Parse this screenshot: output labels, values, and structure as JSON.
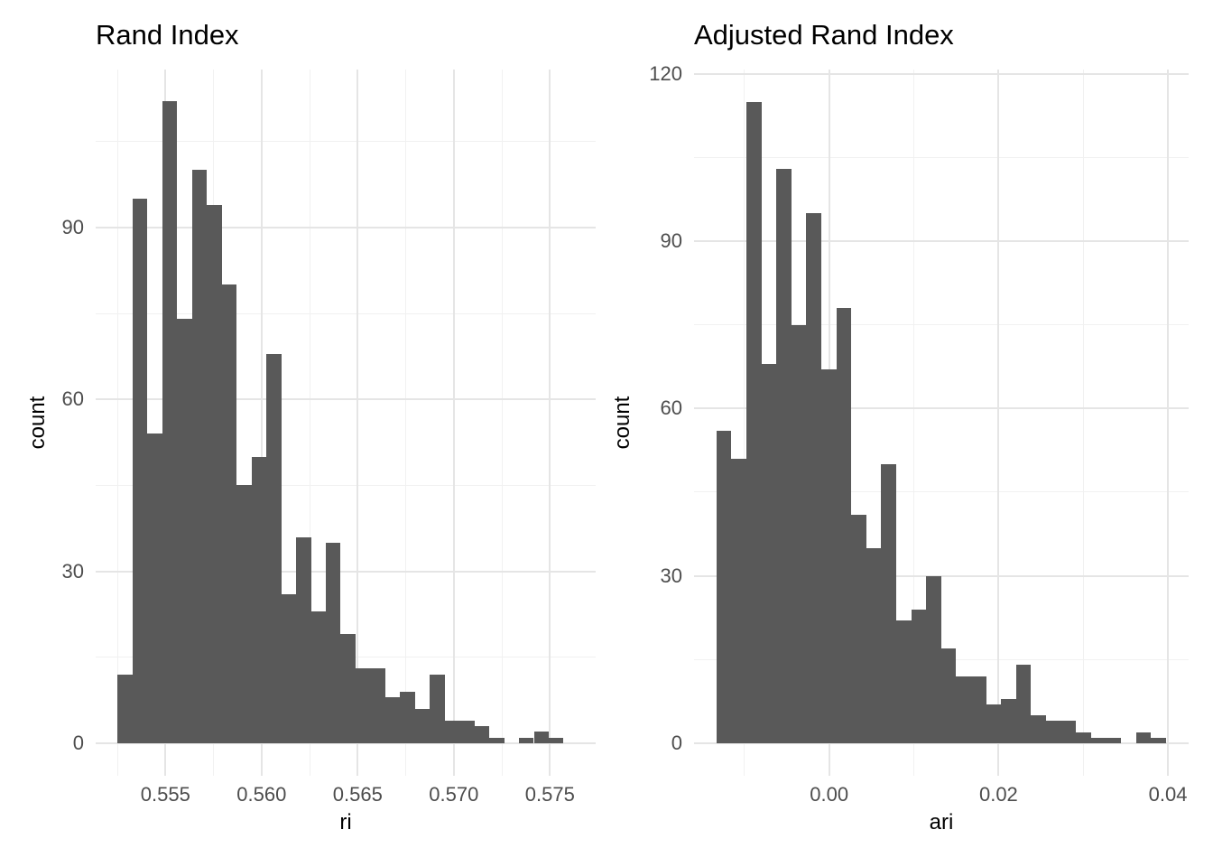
{
  "figure": {
    "background_color": "#FFFFFF",
    "bar_color": "#595959",
    "grid_major_color": "#E5E5E5",
    "grid_minor_color": "#F1F1F1",
    "tick_label_color": "#4D4D4D",
    "title_color": "#000000"
  },
  "chart_data": [
    {
      "type": "bar",
      "subtype": "histogram",
      "title": "Rand Index",
      "xlabel": "ri",
      "ylabel": "count",
      "bin_start": 0.55252,
      "bin_width": 0.000773,
      "counts": [
        12,
        95,
        54,
        112,
        74,
        100,
        94,
        80,
        45,
        50,
        68,
        26,
        36,
        23,
        35,
        19,
        13,
        13,
        8,
        9,
        6,
        12,
        4,
        4,
        3,
        1,
        0,
        1,
        2,
        1
      ],
      "total_count": 1000,
      "x_ticks": [
        0.555,
        0.56,
        0.565,
        0.57,
        0.575
      ],
      "x_tick_labels": [
        "0.555",
        "0.560",
        "0.565",
        "0.570",
        "0.575"
      ],
      "x_minor_ticks": [
        0.5525,
        0.5575,
        0.5625,
        0.5675,
        0.5725,
        0.5775
      ],
      "y_ticks": [
        0,
        30,
        60,
        90
      ],
      "y_tick_labels": [
        "0",
        "30",
        "60",
        "90"
      ],
      "y_minor_ticks": [
        15,
        45,
        75,
        105
      ],
      "xlim": [
        0.55137,
        0.57738
      ],
      "ylim": [
        -5.6,
        117.57
      ],
      "grid": true,
      "legend": false
    },
    {
      "type": "bar",
      "subtype": "histogram",
      "title": "Adjusted Rand Index",
      "xlabel": "ari",
      "ylabel": "count",
      "bin_start": -0.01331,
      "bin_width": 0.001769,
      "counts": [
        56,
        51,
        115,
        68,
        103,
        75,
        95,
        67,
        78,
        41,
        35,
        50,
        22,
        24,
        30,
        17,
        12,
        12,
        7,
        8,
        14,
        5,
        4,
        4,
        2,
        1,
        1,
        0,
        2,
        1
      ],
      "total_count": 1000,
      "x_ticks": [
        0.0,
        0.02,
        0.04
      ],
      "x_tick_labels": [
        "0.00",
        "0.02",
        "0.04"
      ],
      "x_minor_ticks": [
        -0.01,
        0.01,
        0.03
      ],
      "y_ticks": [
        0,
        30,
        60,
        90,
        120
      ],
      "y_tick_labels": [
        "0",
        "30",
        "60",
        "90",
        "120"
      ],
      "y_minor_ticks": [
        15,
        45,
        75,
        105
      ],
      "xlim": [
        -0.01595,
        0.04244
      ],
      "ylim": [
        -5.75,
        120.75
      ],
      "grid": true,
      "legend": false
    }
  ]
}
